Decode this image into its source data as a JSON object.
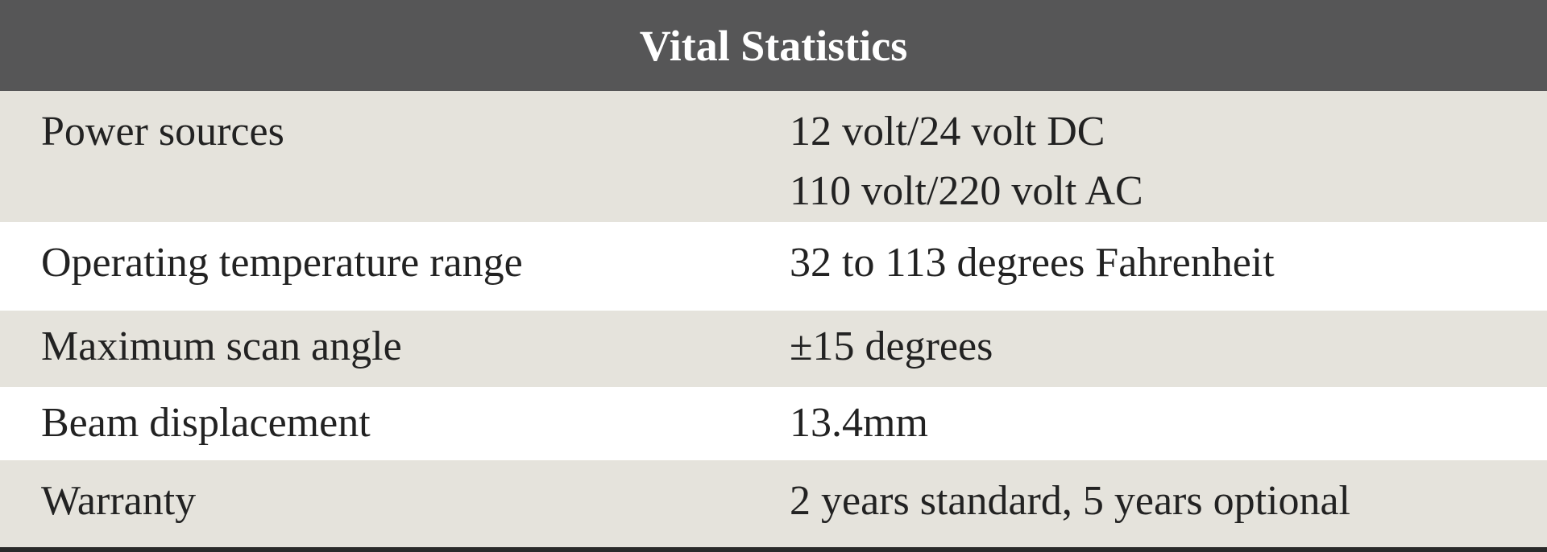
{
  "header": {
    "title": "Vital Statistics"
  },
  "table": {
    "rows": [
      {
        "label": "Power sources",
        "value": [
          "12 volt/24 volt DC",
          "110 volt/220 volt AC"
        ]
      },
      {
        "label": "Operating temperature range",
        "value": [
          "32 to 113 degrees Fahrenheit"
        ]
      },
      {
        "label": "Maximum scan angle",
        "value": [
          "±15 degrees"
        ]
      },
      {
        "label": "Beam displacement",
        "value": [
          "13.4mm"
        ]
      },
      {
        "label": "Warranty",
        "value": [
          "2 years standard, 5 years optional"
        ]
      }
    ]
  }
}
